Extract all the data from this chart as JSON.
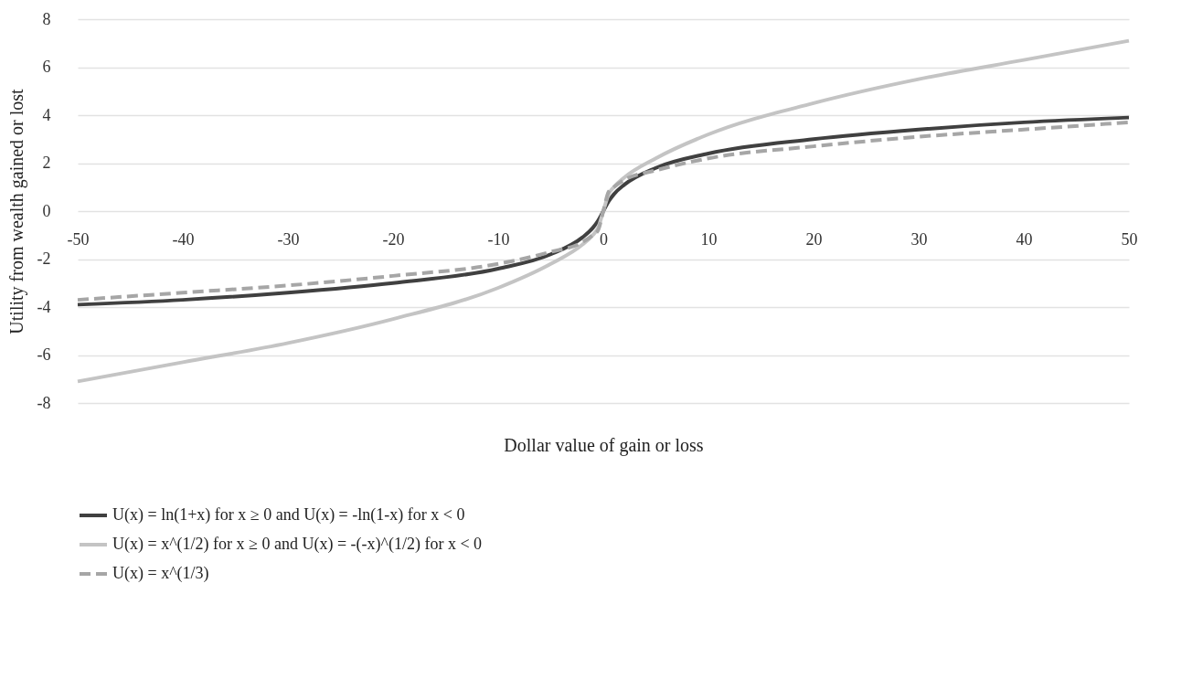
{
  "chart_data": {
    "type": "line",
    "xlabel": "Dollar value of gain or loss",
    "ylabel": "Utility from wealth gained or lost",
    "xlim": [
      -50,
      50
    ],
    "ylim": [
      -8,
      8
    ],
    "xticks": [
      -50,
      -40,
      -30,
      -20,
      -10,
      0,
      10,
      20,
      30,
      40,
      50
    ],
    "yticks": [
      -8,
      -6,
      -4,
      -2,
      0,
      2,
      4,
      6,
      8
    ],
    "grid": "y",
    "legend": "bottom",
    "marker": "none",
    "x": [
      -50,
      -40,
      -30,
      -20,
      -10,
      -5,
      -2,
      -1,
      -0.5,
      0,
      0.5,
      1,
      2,
      5,
      10,
      20,
      30,
      40,
      50
    ],
    "series": [
      {
        "name": "U(x) = ln(1+x) for x ≥ 0 and U(x) = -ln(1-x) for x < 0",
        "color": "#404040",
        "line_style": "solid",
        "values": [
          -3.9,
          -3.7,
          -3.4,
          -3.0,
          -2.4,
          -1.8,
          -1.1,
          -0.7,
          -0.4,
          0,
          0.4,
          0.7,
          1.1,
          1.8,
          2.4,
          3.0,
          3.4,
          3.7,
          3.9
        ]
      },
      {
        "name": "U(x) = x^(1/2) for x ≥ 0 and U(x) = -(-x)^(1/2) for x < 0",
        "color": "#c4c4c4",
        "line_style": "solid",
        "values": [
          -7.1,
          -6.3,
          -5.5,
          -4.5,
          -3.2,
          -2.2,
          -1.4,
          -1.0,
          -0.7,
          0,
          0.7,
          1.0,
          1.4,
          2.2,
          3.2,
          4.5,
          5.5,
          6.3,
          7.1
        ]
      },
      {
        "name": "U(x) = x^(1/3)",
        "color": "#a6a6a6",
        "line_style": "dashed",
        "values": [
          -3.7,
          -3.4,
          -3.1,
          -2.7,
          -2.2,
          -1.7,
          -1.3,
          -1.0,
          -0.8,
          0,
          0.8,
          1.0,
          1.3,
          1.7,
          2.2,
          2.7,
          3.1,
          3.4,
          3.7
        ]
      }
    ]
  }
}
